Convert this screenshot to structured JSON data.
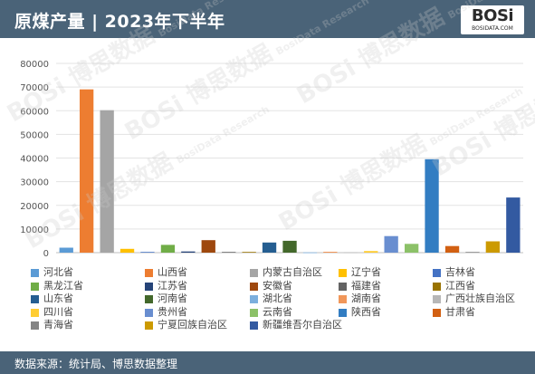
{
  "header": {
    "title": "原煤产量 | 2023年下半年"
  },
  "logo": {
    "name": "BOSi",
    "url": "BOSIDATA.COM"
  },
  "watermark": {
    "brand": "BOSi 博思数据",
    "sub": "BosiData Research"
  },
  "footer": {
    "source": "数据来源：统计局、博思数据整理"
  },
  "chart_data": {
    "type": "bar",
    "title": "",
    "ylim": [
      0,
      80000
    ],
    "yticks": [
      0,
      10000,
      20000,
      30000,
      40000,
      50000,
      60000,
      70000,
      80000
    ],
    "grid": true,
    "legend_position": "bottom",
    "series": [
      {
        "name": "河北省",
        "value": 2100,
        "color": "#5b9bd5"
      },
      {
        "name": "山西省",
        "value": 69000,
        "color": "#ed7d31"
      },
      {
        "name": "内蒙古自治区",
        "value": 60200,
        "color": "#a5a5a5"
      },
      {
        "name": "辽宁省",
        "value": 1600,
        "color": "#ffc000"
      },
      {
        "name": "吉林省",
        "value": 300,
        "color": "#4472c4"
      },
      {
        "name": "黑龙江省",
        "value": 3300,
        "color": "#70ad47"
      },
      {
        "name": "江苏省",
        "value": 500,
        "color": "#264478"
      },
      {
        "name": "安徽省",
        "value": 5300,
        "color": "#9e480e"
      },
      {
        "name": "福建省",
        "value": 300,
        "color": "#636363"
      },
      {
        "name": "江西省",
        "value": 300,
        "color": "#997300"
      },
      {
        "name": "山东省",
        "value": 4300,
        "color": "#255e91"
      },
      {
        "name": "河南省",
        "value": 5000,
        "color": "#43682b"
      },
      {
        "name": "湖北省",
        "value": 100,
        "color": "#7cafdd"
      },
      {
        "name": "湖南省",
        "value": 400,
        "color": "#f1975a"
      },
      {
        "name": "广西壮族自治区",
        "value": 200,
        "color": "#b7b7b7"
      },
      {
        "name": "四川省",
        "value": 700,
        "color": "#ffcd33"
      },
      {
        "name": "贵州省",
        "value": 7000,
        "color": "#698ed0"
      },
      {
        "name": "云南省",
        "value": 3700,
        "color": "#8cc168"
      },
      {
        "name": "陕西省",
        "value": 39500,
        "color": "#327dc2"
      },
      {
        "name": "甘肃省",
        "value": 2800,
        "color": "#d26012"
      },
      {
        "name": "青海省",
        "value": 300,
        "color": "#848484"
      },
      {
        "name": "宁夏回族自治区",
        "value": 4800,
        "color": "#cc9a00"
      },
      {
        "name": "新疆维吾尔自治区",
        "value": 23300,
        "color": "#335aa1"
      }
    ]
  }
}
